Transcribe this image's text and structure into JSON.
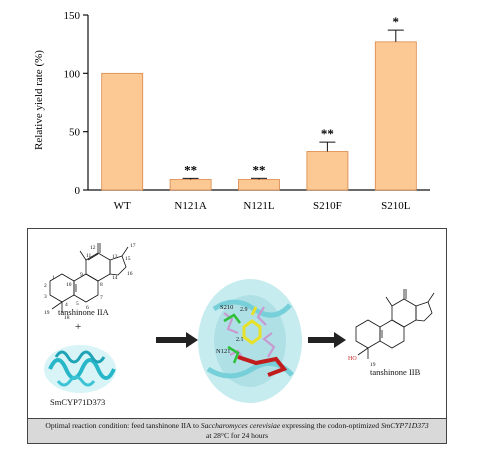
{
  "chart_data": {
    "type": "bar",
    "categories": [
      "WT",
      "N121A",
      "N121L",
      "S210F",
      "S210L"
    ],
    "values": [
      100,
      9,
      9,
      33,
      127
    ],
    "errors": [
      0,
      1,
      1,
      8,
      10
    ],
    "significance": [
      "",
      "**",
      "**",
      "**",
      "*"
    ],
    "ylabel": "Relative yield rate (%)",
    "xlabel": "",
    "ylim": [
      0,
      150
    ],
    "yticks": [
      0,
      50,
      100,
      150
    ],
    "bar_color": "#fcc994",
    "bar_edge": "#d9884a",
    "grid": false
  },
  "scheme": {
    "substrate_label": "tanshinone IIA",
    "plus": "+",
    "enzyme_label": "SmCYP71D373",
    "product_label": "tanshinone IIB",
    "residue_s210": "S210",
    "residue_n121": "N121",
    "dist_1": "2.9",
    "dist_2": "2.1",
    "hydroxyl": "HO",
    "atom_numbers": [
      "1",
      "2",
      "3",
      "4",
      "5",
      "6",
      "7",
      "8",
      "9",
      "10",
      "11",
      "12",
      "13",
      "14",
      "15",
      "16",
      "17",
      "18",
      "19"
    ],
    "product_atom": "19"
  },
  "caption": {
    "part1": "Optimal reaction condition: feed tanshinone IIA to ",
    "organism": "Saccharomyces cerevisiae",
    "part2": " expressing the codon-optimized ",
    "gene": "SmCYP71D373",
    "part3": "at 28°C for 24 hours"
  }
}
